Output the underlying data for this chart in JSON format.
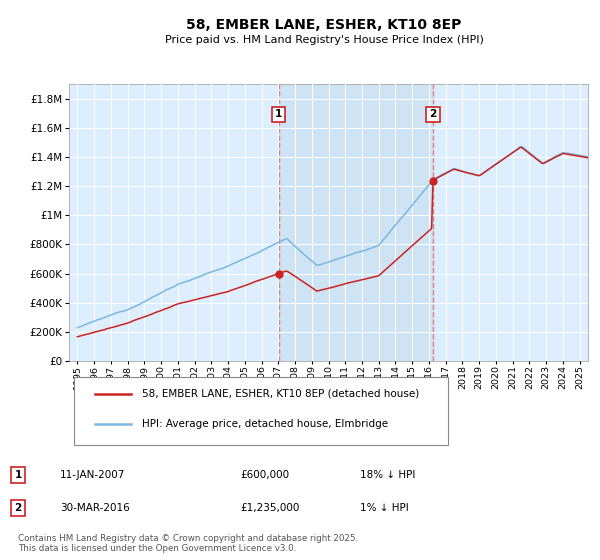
{
  "title": "58, EMBER LANE, ESHER, KT10 8EP",
  "subtitle": "Price paid vs. HM Land Registry's House Price Index (HPI)",
  "ytick_values": [
    0,
    200000,
    400000,
    600000,
    800000,
    1000000,
    1200000,
    1400000,
    1600000,
    1800000
  ],
  "ylim": [
    0,
    1900000
  ],
  "xlim_start": 1994.5,
  "xlim_end": 2025.5,
  "xticks": [
    1995,
    1996,
    1997,
    1998,
    1999,
    2000,
    2001,
    2002,
    2003,
    2004,
    2005,
    2006,
    2007,
    2008,
    2009,
    2010,
    2011,
    2012,
    2013,
    2014,
    2015,
    2016,
    2017,
    2018,
    2019,
    2020,
    2021,
    2022,
    2023,
    2024,
    2025
  ],
  "hpi_color": "#7ab8e0",
  "price_color": "#cc2222",
  "vline_color": "#e08080",
  "fill_color": "#c8dff0",
  "sale1_date": 2007.03,
  "sale2_date": 2016.24,
  "legend_line1": "58, EMBER LANE, ESHER, KT10 8EP (detached house)",
  "legend_line2": "HPI: Average price, detached house, Elmbridge",
  "footnote": "Contains HM Land Registry data © Crown copyright and database right 2025.\nThis data is licensed under the Open Government Licence v3.0.",
  "fig_bg_color": "#ffffff",
  "plot_bg_color": "#ddeeff",
  "grid_color": "#ffffff"
}
